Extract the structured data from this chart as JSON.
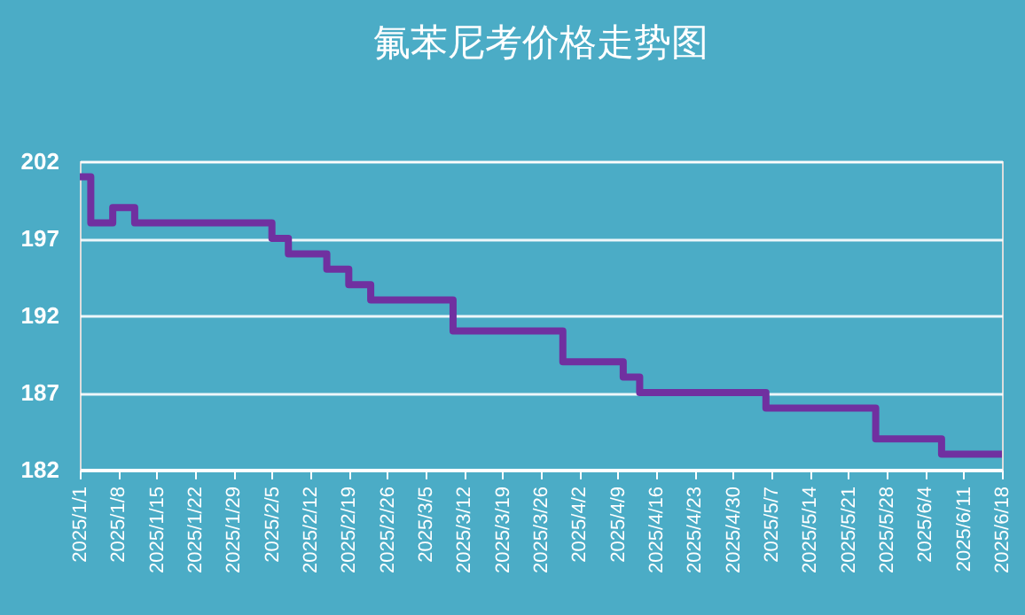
{
  "chart_data": {
    "type": "step",
    "title": "氟苯尼考价格走势图",
    "x": [
      "2025-01-01",
      "2025-01-03",
      "2025-01-07",
      "2025-01-11",
      "2025-02-05",
      "2025-02-08",
      "2025-02-15",
      "2025-02-19",
      "2025-02-23",
      "2025-03-10",
      "2025-03-30",
      "2025-04-10",
      "2025-04-13",
      "2025-05-06",
      "2025-05-26",
      "2025-06-07",
      "2025-06-18"
    ],
    "series": [
      {
        "color": "#7030a0",
        "values": [
          201,
          198,
          199,
          198,
          197,
          196,
          195,
          194,
          193,
          191,
          189,
          188,
          187,
          186,
          184,
          183,
          183
        ]
      }
    ],
    "xlim": [
      "2025-01-01",
      "2025-06-18"
    ],
    "xticks": [
      {
        "value": "2025-01-01",
        "label": "2025/1/1"
      },
      {
        "value": "2025-01-08",
        "label": "2025/1/8"
      },
      {
        "value": "2025-01-15",
        "label": "2025/1/15"
      },
      {
        "value": "2025-01-22",
        "label": "2025/1/22"
      },
      {
        "value": "2025-01-29",
        "label": "2025/1/29"
      },
      {
        "value": "2025-02-05",
        "label": "2025/2/5"
      },
      {
        "value": "2025-02-12",
        "label": "2025/2/12"
      },
      {
        "value": "2025-02-19",
        "label": "2025/2/19"
      },
      {
        "value": "2025-02-26",
        "label": "2025/2/26"
      },
      {
        "value": "2025-03-05",
        "label": "2025/3/5"
      },
      {
        "value": "2025-03-12",
        "label": "2025/3/12"
      },
      {
        "value": "2025-03-19",
        "label": "2025/3/19"
      },
      {
        "value": "2025-03-26",
        "label": "2025/3/26"
      },
      {
        "value": "2025-04-02",
        "label": "2025/4/2"
      },
      {
        "value": "2025-04-09",
        "label": "2025/4/9"
      },
      {
        "value": "2025-04-16",
        "label": "2025/4/16"
      },
      {
        "value": "2025-04-23",
        "label": "2025/4/23"
      },
      {
        "value": "2025-04-30",
        "label": "2025/4/30"
      },
      {
        "value": "2025-05-07",
        "label": "2025/5/7"
      },
      {
        "value": "2025-05-14",
        "label": "2025/5/14"
      },
      {
        "value": "2025-05-21",
        "label": "2025/5/21"
      },
      {
        "value": "2025-05-28",
        "label": "2025/5/28"
      },
      {
        "value": "2025-06-04",
        "label": "2025/6/4"
      },
      {
        "value": "2025-06-11",
        "label": "2025/6/11"
      },
      {
        "value": "2025-06-18",
        "label": "2025/6/18"
      }
    ],
    "ylim": [
      182,
      202
    ],
    "yticks": [
      182,
      187,
      192,
      197,
      202
    ],
    "grid": "y",
    "line_style": "solid"
  }
}
